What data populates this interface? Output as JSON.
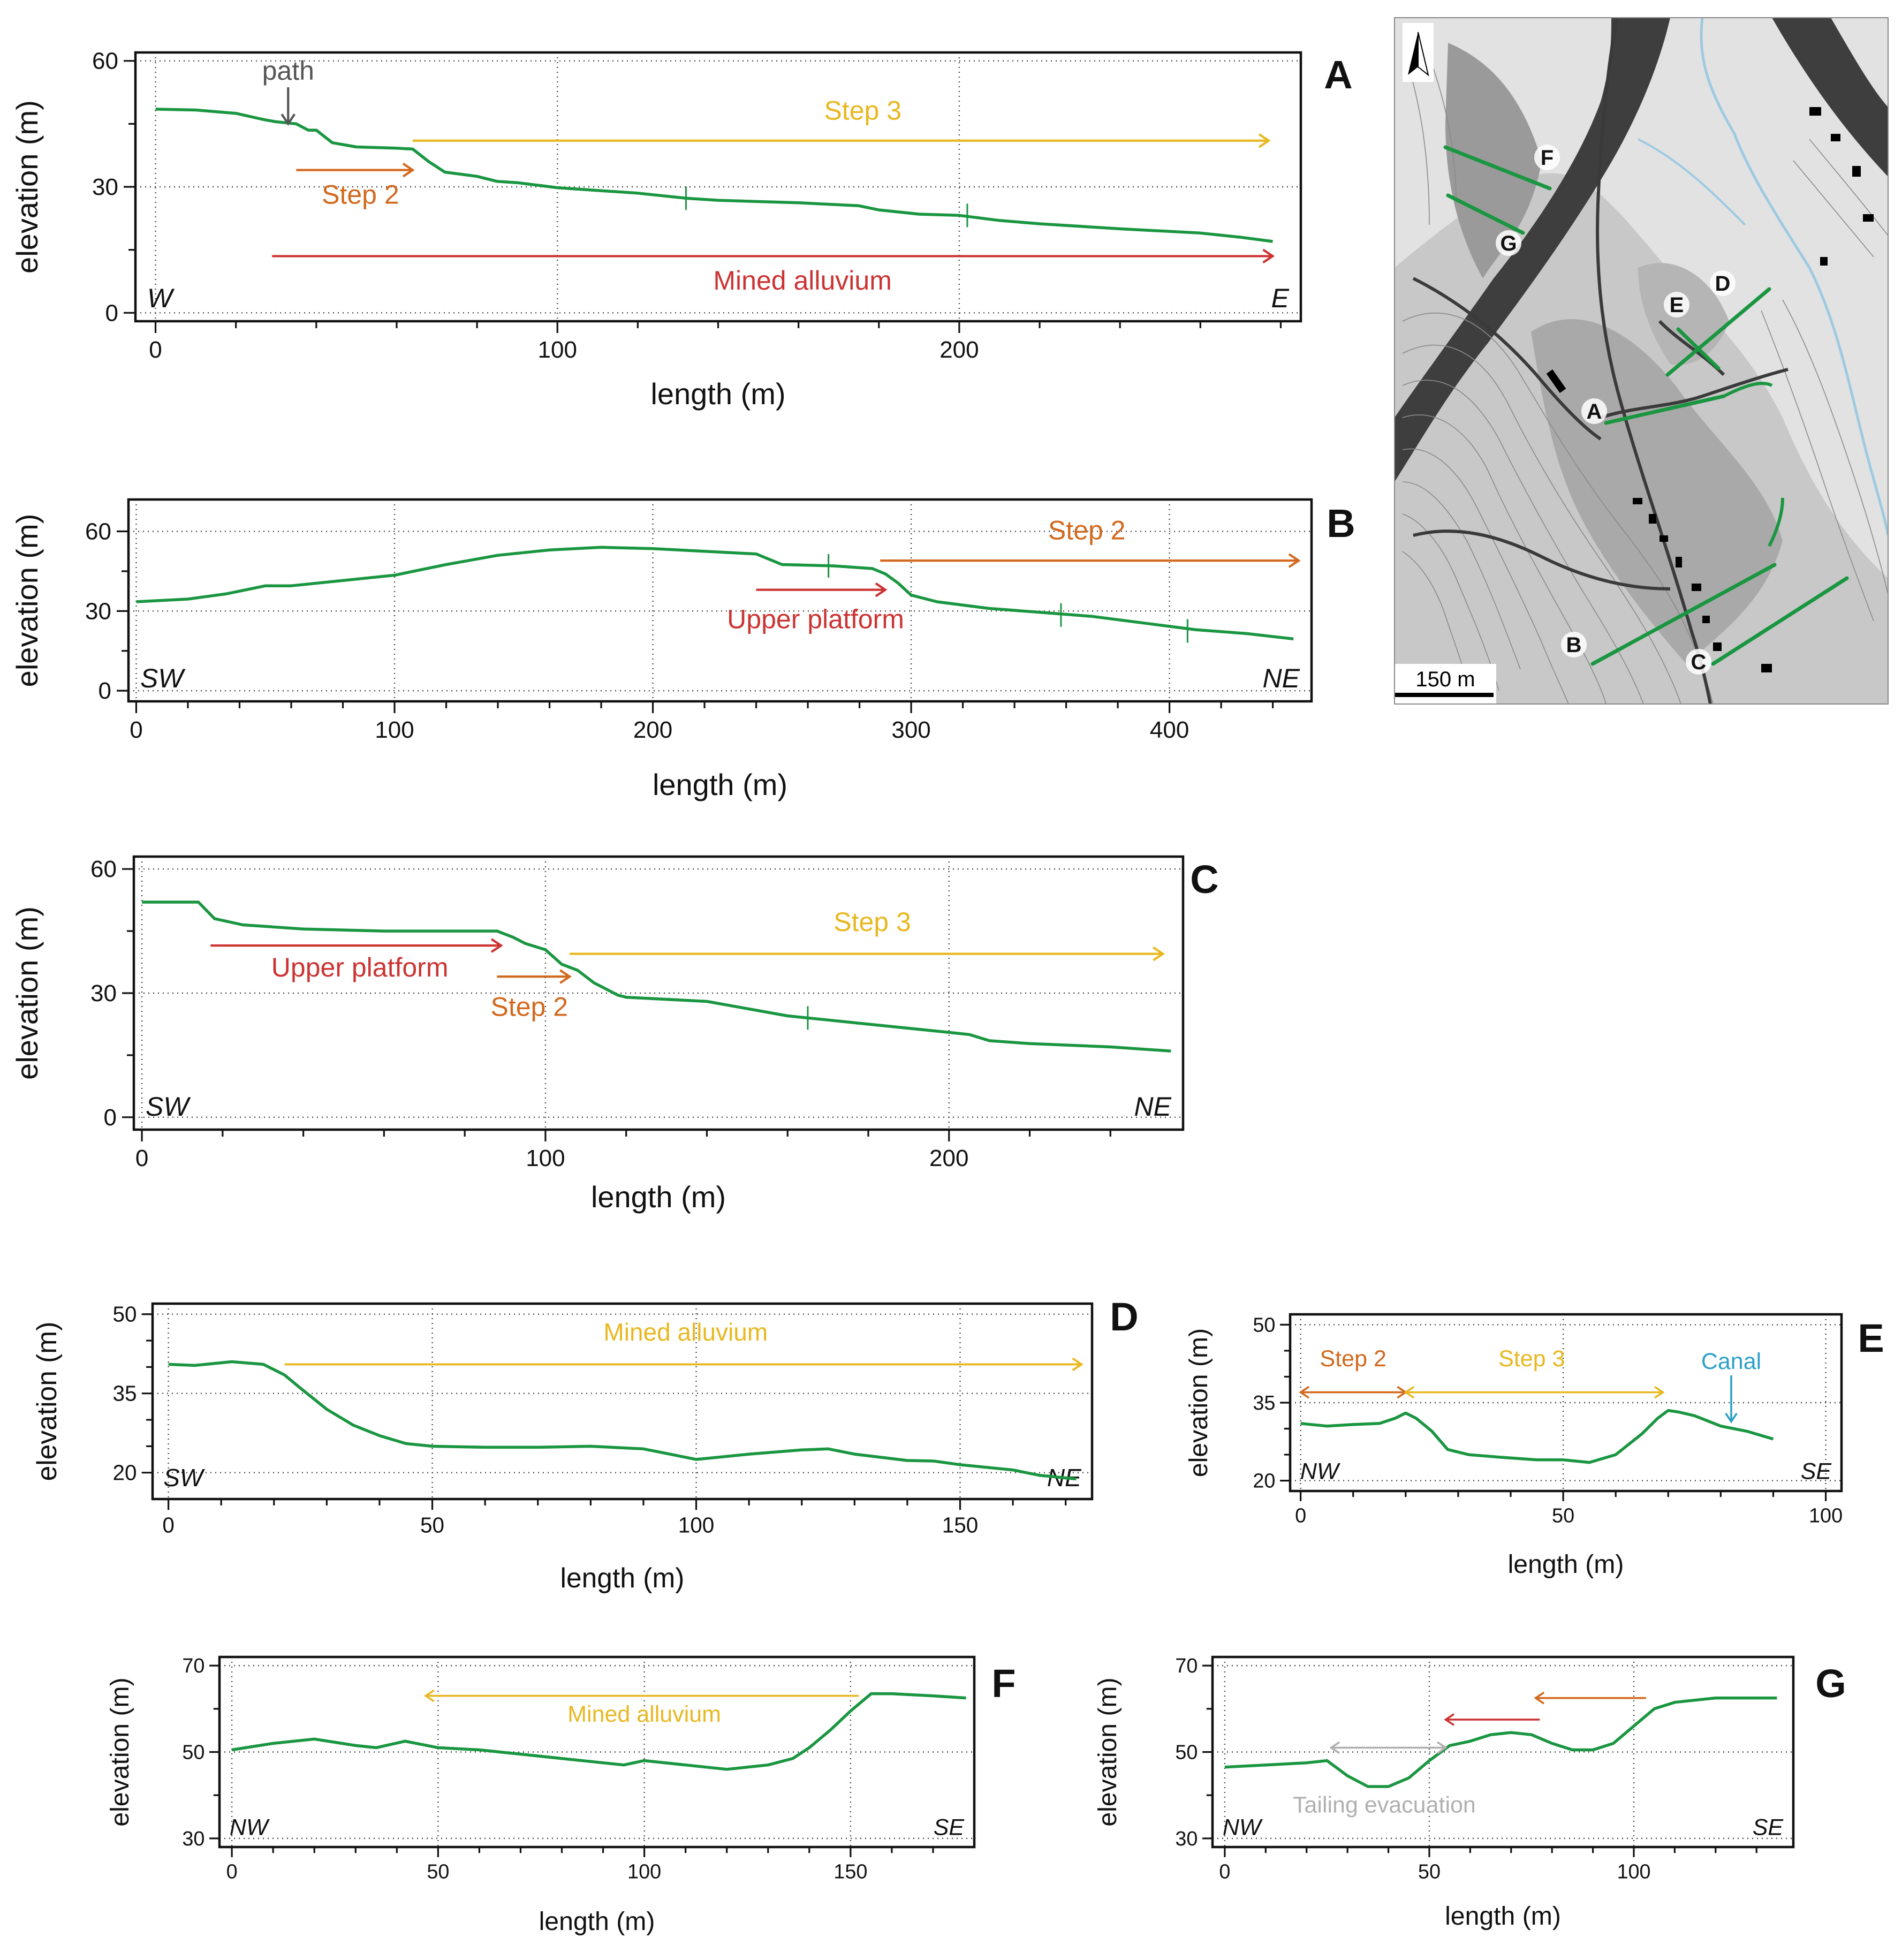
{
  "chart_data": [
    {
      "type": "line",
      "id": "A",
      "panel_label": "A",
      "xlabel": "length (m)",
      "ylabel": "elevation (m)",
      "xlim": [
        -5,
        285
      ],
      "ylim": [
        -2,
        62
      ],
      "xticks": [
        0,
        100,
        200
      ],
      "yticks": [
        0,
        30,
        60
      ],
      "xminor": [
        20,
        40,
        60,
        80,
        120,
        140,
        160,
        180,
        220,
        240,
        260,
        280
      ],
      "yminor": [
        15,
        45
      ],
      "grid": true,
      "dir_left": "W",
      "dir_right": "E",
      "series": [
        {
          "name": "profile",
          "x": [
            0,
            10,
            20,
            27,
            30,
            35,
            38,
            40,
            44,
            50,
            60,
            64,
            68,
            72,
            80,
            85,
            90,
            100,
            120,
            132,
            140,
            160,
            175,
            180,
            190,
            200,
            210,
            220,
            240,
            260,
            270,
            278
          ],
          "y": [
            48.5,
            48.3,
            47.5,
            46,
            45.5,
            45,
            43.5,
            43.5,
            40.5,
            39.5,
            39.2,
            39,
            36,
            33.5,
            32.5,
            31.3,
            31,
            29.8,
            28.5,
            27.3,
            26.8,
            26.2,
            25.5,
            24.5,
            23.5,
            23.2,
            22,
            21.2,
            20,
            19,
            18,
            17
          ]
        }
      ],
      "markers": [
        {
          "x": 132,
          "y": 27.3
        },
        {
          "x": 202,
          "y": 23.2
        }
      ],
      "annotations": [
        {
          "text": "path",
          "kind": "pointer",
          "x": 33,
          "y": 44.5,
          "tx": 33,
          "ty": 55.5,
          "color": "#555555"
        },
        {
          "text": "Step 3",
          "kind": "arrow",
          "x1": 64,
          "x2": 277,
          "y": 41,
          "tx": 176,
          "ty": 46,
          "color": "#e8b820"
        },
        {
          "text": "Step 2",
          "kind": "arrow",
          "x1": 35,
          "x2": 64,
          "y": 34,
          "tx": 51,
          "ty": 26,
          "color": "#d2691e"
        },
        {
          "text": "Mined alluvium",
          "kind": "arrow",
          "x1": 29,
          "x2": 278,
          "y": 13.5,
          "tx": 161,
          "ty": 5.5,
          "color": "#cc3333"
        }
      ]
    },
    {
      "type": "line",
      "id": "B",
      "panel_label": "B",
      "xlabel": "length (m)",
      "ylabel": "elevation (m)",
      "xlim": [
        -3,
        455
      ],
      "ylim": [
        -4,
        72
      ],
      "xticks": [
        0,
        100,
        200,
        300,
        400
      ],
      "yticks": [
        0,
        30,
        60
      ],
      "xminor": [
        20,
        40,
        60,
        80,
        120,
        140,
        160,
        180,
        220,
        240,
        260,
        280,
        320,
        340,
        360,
        380,
        420,
        440
      ],
      "yminor": [
        15,
        45
      ],
      "grid": true,
      "dir_left": "SW",
      "dir_right": "NE",
      "series": [
        {
          "name": "profile",
          "x": [
            0,
            20,
            35,
            45,
            50,
            60,
            80,
            100,
            120,
            140,
            160,
            180,
            200,
            230,
            240,
            250,
            270,
            285,
            290,
            295,
            300,
            310,
            330,
            350,
            370,
            390,
            410,
            430,
            448
          ],
          "y": [
            33.5,
            34.5,
            36.5,
            38.5,
            39.5,
            39.5,
            41.5,
            43.5,
            47.5,
            51,
            53,
            54,
            53.5,
            52,
            51.5,
            47.5,
            47,
            46,
            44,
            40.5,
            36,
            33.5,
            31,
            29.5,
            28,
            25.5,
            23,
            21.5,
            19.5
          ]
        }
      ],
      "markers": [
        {
          "x": 268,
          "y": 47
        },
        {
          "x": 358,
          "y": 28.5
        },
        {
          "x": 407,
          "y": 22.5
        }
      ],
      "annotations": [
        {
          "text": "Step 2",
          "kind": "arrow",
          "x1": 288,
          "x2": 450,
          "y": 49,
          "tx": 368,
          "ty": 57,
          "color": "#d2691e"
        },
        {
          "text": "Upper platform",
          "kind": "arrow",
          "x1": 240,
          "x2": 290,
          "y": 38,
          "tx": 263,
          "ty": 23.5,
          "color": "#cc3333"
        }
      ]
    },
    {
      "type": "line",
      "id": "C",
      "panel_label": "C",
      "xlabel": "length (m)",
      "ylabel": "elevation (m)",
      "xlim": [
        -2,
        258
      ],
      "ylim": [
        -3,
        63
      ],
      "xticks": [
        0,
        100,
        200
      ],
      "yticks": [
        0,
        30,
        60
      ],
      "xminor": [
        20,
        40,
        60,
        80,
        120,
        140,
        160,
        180,
        220,
        240
      ],
      "yminor": [
        15,
        45
      ],
      "grid": true,
      "dir_left": "SW",
      "dir_right": "NE",
      "series": [
        {
          "name": "profile",
          "x": [
            0,
            14,
            18,
            25,
            40,
            60,
            80,
            88,
            92,
            95,
            100,
            104,
            108,
            112,
            118,
            120,
            140,
            160,
            170,
            180,
            195,
            205,
            210,
            220,
            240,
            255
          ],
          "y": [
            52,
            52,
            48,
            46.5,
            45.5,
            45,
            45,
            45,
            43.5,
            42,
            40.5,
            37,
            35.5,
            32.5,
            29.5,
            29,
            28,
            24.5,
            23.5,
            22.5,
            21,
            20,
            18.5,
            17.8,
            17,
            16
          ]
        }
      ],
      "markers": [
        {
          "x": 165,
          "y": 24
        }
      ],
      "annotations": [
        {
          "text": "Upper platform",
          "kind": "arrow",
          "x1": 17,
          "x2": 89,
          "y": 41.5,
          "tx": 54,
          "ty": 34,
          "color": "#cc3333"
        },
        {
          "text": "Step 2",
          "kind": "arrow",
          "x1": 88,
          "x2": 106,
          "y": 34,
          "tx": 96,
          "ty": 24.5,
          "color": "#d2691e"
        },
        {
          "text": "Step 3",
          "kind": "arrow",
          "x1": 106,
          "x2": 253,
          "y": 39.5,
          "tx": 181,
          "ty": 45,
          "color": "#e8b820"
        }
      ]
    },
    {
      "type": "line",
      "id": "D",
      "panel_label": "D",
      "xlabel": "length (m)",
      "ylabel": "elevation (m)",
      "xlim": [
        -3,
        175
      ],
      "ylim": [
        15,
        52
      ],
      "xticks": [
        0,
        50,
        100,
        150
      ],
      "yticks": [
        20,
        35,
        50
      ],
      "xminor": [
        10,
        20,
        30,
        40,
        60,
        70,
        80,
        90,
        110,
        120,
        130,
        140,
        160,
        170
      ],
      "yminor": [
        25,
        30,
        40,
        45
      ],
      "grid": true,
      "dir_left": "SW",
      "dir_right": "NE",
      "series": [
        {
          "name": "profile",
          "x": [
            0,
            5,
            12,
            18,
            22,
            25,
            30,
            35,
            40,
            45,
            50,
            60,
            70,
            80,
            90,
            95,
            100,
            105,
            110,
            120,
            125,
            130,
            140,
            145,
            150,
            160,
            165,
            172
          ],
          "y": [
            40.5,
            40.3,
            41,
            40.5,
            38.5,
            36,
            32,
            29,
            27,
            25.5,
            25,
            24.8,
            24.8,
            25,
            24.5,
            23.5,
            22.5,
            23,
            23.5,
            24.3,
            24.5,
            23.5,
            22.3,
            22.2,
            21.5,
            20.5,
            19.5,
            18.8
          ]
        }
      ],
      "markers": [],
      "annotations": [
        {
          "text": "Mined alluvium",
          "kind": "arrow",
          "x1": 22,
          "x2": 173,
          "y": 40.5,
          "tx": 98,
          "ty": 45,
          "color": "#e8b820"
        }
      ]
    },
    {
      "type": "line",
      "id": "E",
      "panel_label": "E",
      "xlabel": "length (m)",
      "ylabel": "elevation (m)",
      "xlim": [
        -2,
        103
      ],
      "ylim": [
        18,
        52
      ],
      "xticks": [
        0,
        50,
        100
      ],
      "yticks": [
        20,
        35,
        50
      ],
      "xminor": [
        10,
        20,
        30,
        40,
        60,
        70,
        80,
        90
      ],
      "yminor": [
        25,
        30,
        40,
        45
      ],
      "grid": true,
      "dir_left": "NW",
      "dir_right": "SE",
      "series": [
        {
          "name": "profile",
          "x": [
            0,
            5,
            10,
            15,
            18,
            20,
            22,
            25,
            28,
            32,
            38,
            45,
            50,
            55,
            60,
            65,
            68,
            70,
            72,
            75,
            80,
            85,
            90
          ],
          "y": [
            31,
            30.5,
            30.8,
            31,
            32,
            33,
            32,
            29.5,
            26,
            25,
            24.5,
            24,
            24,
            23.5,
            25,
            29,
            32,
            33.5,
            33.2,
            32.5,
            30.5,
            29.5,
            28
          ]
        }
      ],
      "markers": [],
      "annotations": [
        {
          "text": "Step 2",
          "kind": "double",
          "x1": 0,
          "x2": 20,
          "y": 37,
          "tx": 10,
          "ty": 42,
          "color": "#d2691e"
        },
        {
          "text": "Step 3",
          "kind": "double",
          "x1": 20,
          "x2": 69,
          "y": 37,
          "tx": 44,
          "ty": 42,
          "color": "#e8b820"
        },
        {
          "text": "Canal",
          "kind": "pointer",
          "x": 82,
          "y": 31,
          "tx": 82,
          "ty": 41.5,
          "color": "#2ca0c8"
        }
      ]
    },
    {
      "type": "line",
      "id": "F",
      "panel_label": "F",
      "xlabel": "length (m)",
      "ylabel": "elevation (m)",
      "xlim": [
        -3,
        180
      ],
      "ylim": [
        28,
        72
      ],
      "xticks": [
        0,
        50,
        100,
        150
      ],
      "yticks": [
        30,
        50,
        70
      ],
      "xminor": [
        10,
        20,
        30,
        40,
        60,
        70,
        80,
        90,
        110,
        120,
        130,
        140,
        160,
        170
      ],
      "yminor": [
        40,
        60
      ],
      "grid": true,
      "dir_left": "NW",
      "dir_right": "SE",
      "series": [
        {
          "name": "profile",
          "x": [
            0,
            10,
            20,
            30,
            35,
            42,
            50,
            60,
            70,
            80,
            90,
            95,
            100,
            110,
            120,
            130,
            136,
            140,
            145,
            150,
            155,
            160,
            170,
            178
          ],
          "y": [
            50.5,
            52,
            53,
            51.5,
            51,
            52.5,
            51,
            50.5,
            49.5,
            48.5,
            47.5,
            47,
            48,
            47,
            46,
            47,
            48.5,
            51,
            55,
            59.5,
            63.5,
            63.5,
            63,
            62.5
          ]
        }
      ],
      "markers": [],
      "annotations": [
        {
          "text": "Mined alluvium",
          "kind": "arrow",
          "x1": 152,
          "x2": 47,
          "y": 63,
          "tx": 100,
          "ty": 57,
          "color": "#e8b820"
        }
      ]
    },
    {
      "type": "line",
      "id": "G",
      "panel_label": "G",
      "xlabel": "length (m)",
      "ylabel": "elevation (m)",
      "xlim": [
        -3,
        139
      ],
      "ylim": [
        28,
        72
      ],
      "xticks": [
        0,
        50,
        100
      ],
      "yticks": [
        30,
        50,
        70
      ],
      "xminor": [
        10,
        20,
        30,
        40,
        60,
        70,
        80,
        90,
        110,
        120,
        130
      ],
      "yminor": [
        40,
        60
      ],
      "grid": true,
      "dir_left": "NW",
      "dir_right": "SE",
      "series": [
        {
          "name": "profile",
          "x": [
            0,
            10,
            20,
            25,
            30,
            35,
            40,
            45,
            50,
            55,
            60,
            65,
            70,
            75,
            80,
            85,
            90,
            95,
            100,
            105,
            110,
            120,
            130,
            135
          ],
          "y": [
            46.5,
            47,
            47.5,
            48,
            44.5,
            42,
            42,
            44,
            48,
            51.5,
            52.5,
            54,
            54.5,
            54,
            52,
            50.5,
            50.5,
            52,
            56,
            60,
            61.5,
            62.5,
            62.5,
            62.5
          ]
        }
      ],
      "markers": [],
      "annotations": [
        {
          "text": "",
          "kind": "arrow",
          "x1": 103,
          "x2": 76,
          "y": 62.5,
          "color": "#d2691e"
        },
        {
          "text": "",
          "kind": "arrow",
          "x1": 77,
          "x2": 54,
          "y": 57.5,
          "color": "#cc3333"
        },
        {
          "text": "Tailing evacuation",
          "kind": "double",
          "x1": 26,
          "x2": 54,
          "y": 51,
          "tx": 39,
          "ty": 36,
          "color": "#b0b0b0"
        }
      ]
    }
  ],
  "map": {
    "scale_bar": "150 m",
    "profile_labels": [
      "A",
      "B",
      "C",
      "D",
      "E",
      "F",
      "G"
    ],
    "north_icon": "north-arrow-icon",
    "colors": {
      "profile_line": "#1a9641",
      "river": "#9ecae1",
      "road": "#3a3a3a"
    }
  }
}
